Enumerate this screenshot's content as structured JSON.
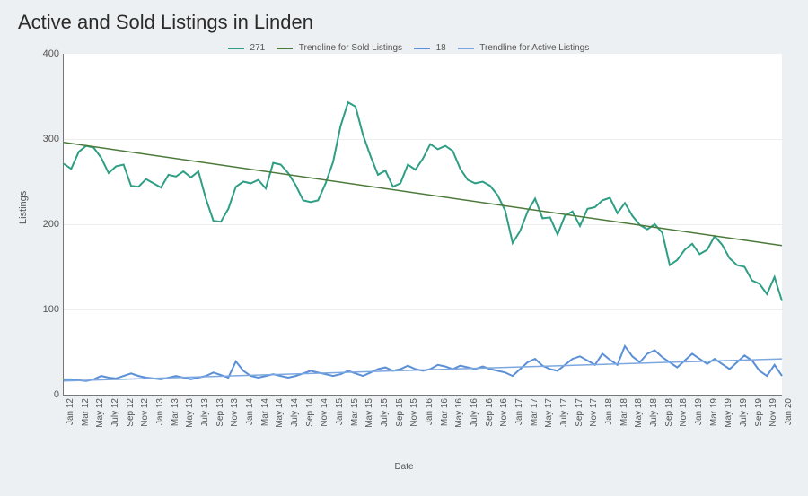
{
  "chart": {
    "type": "line",
    "title": "Active and Sold Listings in Linden",
    "title_fontsize": 22,
    "background_color": "#edf0f2",
    "plot_background_color": "#ffffff",
    "grid_color": "#ededed",
    "axis_color": "#777777",
    "text_color": "#555555",
    "xlabel": "Date",
    "ylabel": "Listings",
    "label_fontsize": 11,
    "tick_fontsize": 10,
    "ylim": [
      0,
      400
    ],
    "ytick_step": 100,
    "x_categories": [
      "Jan 12",
      "Mar 12",
      "May 12",
      "July 12",
      "Sep 12",
      "Nov 12",
      "Jan 13",
      "Mar 13",
      "May 13",
      "July 13",
      "Sep 13",
      "Nov 13",
      "Jan 14",
      "Mar 14",
      "May 14",
      "July 14",
      "Sep 14",
      "Nov 14",
      "Jan 15",
      "Mar 15",
      "May 15",
      "July 15",
      "Sep 15",
      "Nov 15",
      "Jan 16",
      "Mar 16",
      "May 16",
      "July 16",
      "Sep 16",
      "Nov 16",
      "Jan 17",
      "Mar 17",
      "May 17",
      "July 17",
      "Sep 17",
      "Nov 17",
      "Jan 18",
      "Mar 18",
      "May 18",
      "July 18",
      "Sep 18",
      "Nov 18",
      "Jan 19",
      "Mar 19",
      "May 19",
      "July 19",
      "Sep 19",
      "Nov 19",
      "Jan 20"
    ],
    "series": {
      "sold": {
        "label": "271",
        "color": "#2e9e84",
        "line_width": 2,
        "values": [
          271,
          265,
          285,
          292,
          290,
          278,
          260,
          268,
          270,
          245,
          244,
          253,
          248,
          243,
          258,
          256,
          262,
          255,
          262,
          230,
          204,
          203,
          218,
          244,
          250,
          248,
          252,
          242,
          272,
          270,
          260,
          246,
          228,
          226,
          228,
          248,
          273,
          315,
          343,
          338,
          305,
          280,
          258,
          263,
          244,
          248,
          270,
          264,
          277,
          294,
          288,
          292,
          286,
          265,
          252,
          248,
          250,
          245,
          234,
          216,
          178,
          192,
          215,
          230,
          207,
          208,
          188,
          210,
          215,
          198,
          218,
          220,
          228,
          231,
          213,
          225,
          210,
          199,
          194,
          200,
          190,
          152,
          158,
          170,
          177,
          165,
          170,
          186,
          176,
          160,
          152,
          150,
          134,
          130,
          118,
          138,
          110
        ]
      },
      "active": {
        "label": "18",
        "color": "#5b8fd6",
        "line_width": 2,
        "values": [
          18,
          18,
          17,
          16,
          18,
          22,
          20,
          19,
          22,
          25,
          22,
          20,
          19,
          18,
          20,
          22,
          20,
          18,
          20,
          22,
          26,
          23,
          20,
          39,
          28,
          22,
          20,
          22,
          24,
          22,
          20,
          22,
          25,
          28,
          26,
          24,
          22,
          24,
          28,
          25,
          22,
          26,
          30,
          32,
          28,
          30,
          34,
          30,
          28,
          30,
          35,
          33,
          30,
          34,
          32,
          30,
          33,
          30,
          28,
          26,
          22,
          30,
          38,
          42,
          34,
          30,
          28,
          35,
          42,
          45,
          40,
          35,
          48,
          41,
          35,
          57,
          45,
          38,
          48,
          52,
          44,
          38,
          32,
          40,
          48,
          42,
          36,
          42,
          36,
          30,
          38,
          46,
          40,
          28,
          22,
          35,
          22
        ]
      }
    },
    "trendlines": {
      "sold_trend": {
        "label": "Trendline for Sold Listings",
        "color": "#4b7a3a",
        "line_width": 1.5,
        "start_y": 296,
        "end_y": 175
      },
      "active_trend": {
        "label": "Trendline for Active Listings",
        "color": "#7ca7e0",
        "line_width": 1.5,
        "start_y": 16,
        "end_y": 42
      }
    },
    "legend": {
      "position": "top-center",
      "items": [
        "271",
        "Trendline for Sold Listings",
        "18",
        "Trendline for Active Listings"
      ]
    }
  }
}
